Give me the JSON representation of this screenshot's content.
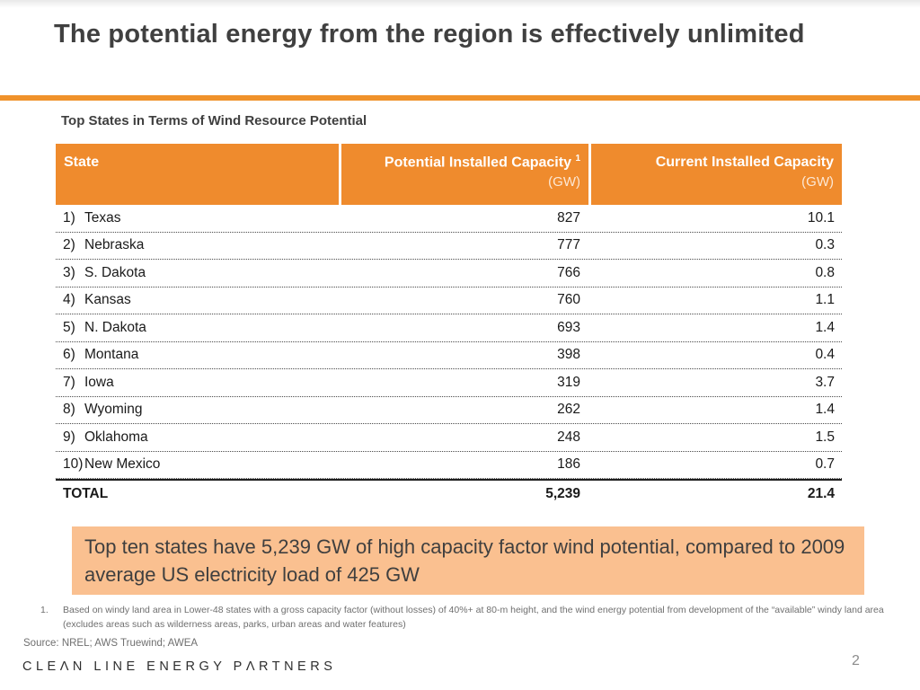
{
  "slide": {
    "title": "The potential energy from the region is effectively unlimited",
    "page_number": "2"
  },
  "table": {
    "caption": "Top States in Terms of Wind Resource Potential",
    "headers": {
      "state": "State",
      "potential": "Potential Installed Capacity",
      "potential_superscript": "1",
      "potential_unit": "(GW)",
      "current": "Current Installed Capacity",
      "current_unit": "(GW)"
    },
    "rows": [
      {
        "rank": "1)",
        "state": "Texas",
        "potential": "827",
        "current": "10.1"
      },
      {
        "rank": "2)",
        "state": "Nebraska",
        "potential": "777",
        "current": "0.3"
      },
      {
        "rank": "3)",
        "state": "S. Dakota",
        "potential": "766",
        "current": "0.8"
      },
      {
        "rank": "4)",
        "state": "Kansas",
        "potential": "760",
        "current": "1.1"
      },
      {
        "rank": "5)",
        "state": "N. Dakota",
        "potential": "693",
        "current": "1.4"
      },
      {
        "rank": "6)",
        "state": "Montana",
        "potential": "398",
        "current": "0.4"
      },
      {
        "rank": "7)",
        "state": "Iowa",
        "potential": "319",
        "current": "3.7"
      },
      {
        "rank": "8)",
        "state": "Wyoming",
        "potential": "262",
        "current": "1.4"
      },
      {
        "rank": "9)",
        "state": "Oklahoma",
        "potential": "248",
        "current": "1.5"
      },
      {
        "rank": "10)",
        "state": "New Mexico",
        "potential": "186",
        "current": "0.7"
      }
    ],
    "total": {
      "label": "TOTAL",
      "potential": "5,239",
      "current": "21.4"
    }
  },
  "callout": {
    "text": "Top ten states have 5,239 GW of high capacity factor wind potential, compared to 2009 average US electricity load of 425 GW"
  },
  "footnote": {
    "number": "1.",
    "text": "Based on windy land area in Lower-48 states with a gross capacity factor (without losses) of 40%+ at 80-m height, and the wind energy potential from development of the “available” windy land area (excludes areas such as wilderness areas, parks, urban areas and water features)"
  },
  "source": "Source: NREL; AWS Truewind; AWEA",
  "logo": "CLEΛN LINE ENERGY PΛRTNERS",
  "colors": {
    "header_orange": "#EF8B2D",
    "rule_orange": "#F0922B",
    "callout_peach": "#FAC090",
    "title_gray": "#404040",
    "footnote_gray": "#6F6F6F"
  }
}
